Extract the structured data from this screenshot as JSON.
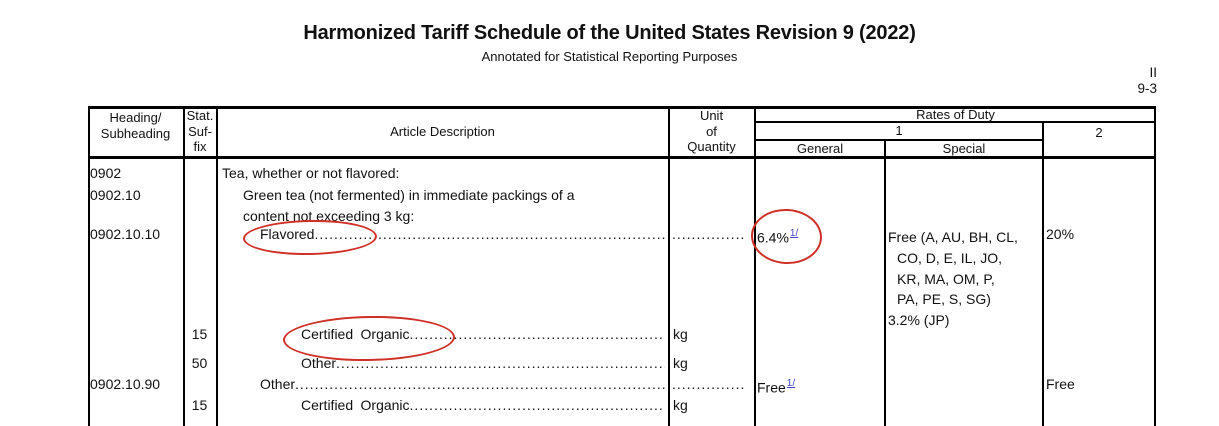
{
  "page": {
    "title": "Harmonized Tariff Schedule of the United States Revision 9 (2022)",
    "subtitle": "Annotated for Statistical Reporting Purposes",
    "page_mark_line1": "II",
    "page_mark_line2": "9-3"
  },
  "table": {
    "headers": {
      "heading_subheading": "Heading/\nSubheading",
      "stat_suffix": "Stat.\nSuf-\nfix",
      "article_description": "Article Description",
      "unit_of_quantity": "Unit\nof\nQuantity",
      "rates_of_duty": "Rates of Duty",
      "duty_col_1": "1",
      "duty_col_2": "2",
      "general": "General",
      "special": "Special"
    },
    "rows": [
      {
        "heading": "0902",
        "suffix": "",
        "indent": 0,
        "description": "Tea, whether or not flavored:",
        "leader": false,
        "unit": "",
        "unit_leader": false,
        "general": "",
        "general_footnote": "",
        "special_lines": [],
        "col2": ""
      },
      {
        "heading": "0902.10",
        "suffix": "",
        "indent": 1,
        "description": "Green tea (not fermented) in immediate packings of a",
        "leader": false,
        "unit": "",
        "unit_leader": false,
        "general": "",
        "general_footnote": "",
        "special_lines": [],
        "col2": ""
      },
      {
        "heading": "",
        "suffix": "",
        "indent": 1,
        "description": "content not exceeding 3 kg:",
        "leader": false,
        "unit": "",
        "unit_leader": false,
        "general": "",
        "general_footnote": "",
        "special_lines": [],
        "col2": ""
      },
      {
        "heading": "0902.10.10",
        "suffix": "",
        "indent": 2,
        "description": "Flavored",
        "leader": true,
        "unit": "",
        "unit_leader": true,
        "general": "6.4%",
        "general_footnote": "1/",
        "special_lines": [
          "Free (A, AU, BH, CL,",
          "CO, D, E, IL, JO,",
          "KR, MA, OM, P,",
          "PA, PE, S, SG)",
          "3.2% (JP)"
        ],
        "col2": "20%"
      },
      {
        "heading": "",
        "suffix": "15",
        "indent": 3,
        "description": "Certified Organic",
        "wide_space": true,
        "leader": true,
        "unit": "kg",
        "unit_leader": false,
        "general": "",
        "general_footnote": "",
        "special_lines": [],
        "col2": ""
      },
      {
        "heading": "",
        "suffix": "50",
        "indent": 3,
        "description": "Other",
        "leader": true,
        "unit": "kg",
        "unit_leader": false,
        "general": "",
        "general_footnote": "",
        "special_lines": [],
        "col2": ""
      },
      {
        "heading": "0902.10.90",
        "suffix": "",
        "indent": 2,
        "description": "Other",
        "leader": true,
        "unit": "",
        "unit_leader": true,
        "general": "Free",
        "general_footnote": "1/",
        "special_lines": [],
        "col2": "Free"
      },
      {
        "heading": "",
        "suffix": "15",
        "indent": 3,
        "description": "Certified Organic",
        "wide_space": true,
        "leader": true,
        "unit": "kg",
        "unit_leader": false,
        "general": "",
        "general_footnote": "",
        "special_lines": [],
        "col2": ""
      }
    ]
  },
  "annotations": {
    "highlight_color": "#cf2f26",
    "circled_items": [
      "Flavored",
      "6.4% 1/",
      "Certified Organic."
    ]
  }
}
